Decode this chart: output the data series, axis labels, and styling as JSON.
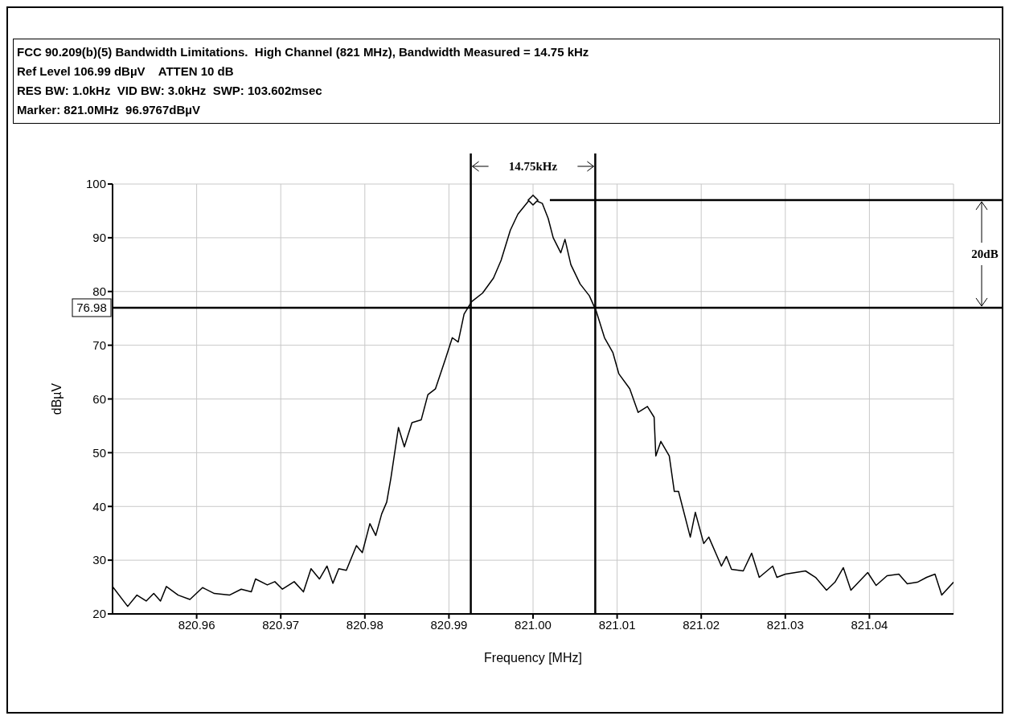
{
  "chart_data": {
    "type": "line",
    "title": "FCC 90.209(b)(5) Bandwidth Limitations.  High Channel (821 MHz), Bandwidth Measured = 14.75 kHz",
    "subtitle": "Ref Level 106.99 dBµV    ATTEN 10 dB\nRES BW: 1.0kHz  VID BW: 3.0kHz  SWP: 103.602msec\nMarker: 821.0MHz  96.9767dBµV",
    "xlabel": "Frequency [MHz]",
    "ylabel": "dBµV",
    "xlim": [
      820.95,
      821.05
    ],
    "xticks": [
      {
        "value": 820.96,
        "label": "820.96"
      },
      {
        "value": 820.97,
        "label": "820.97"
      },
      {
        "value": 820.98,
        "label": "820.98"
      },
      {
        "value": 820.99,
        "label": "820.99"
      },
      {
        "value": 821.0,
        "label": "821.00"
      },
      {
        "value": 821.01,
        "label": "821.01"
      },
      {
        "value": 821.02,
        "label": "821.02"
      },
      {
        "value": 821.03,
        "label": "821.03"
      },
      {
        "value": 821.04,
        "label": "821.04"
      }
    ],
    "ylim": [
      20,
      100
    ],
    "yticks": [
      20,
      30,
      40,
      50,
      60,
      70,
      80,
      90,
      100
    ],
    "grid": true,
    "line_style": "solid",
    "ref_lines": [
      {
        "axis": "y",
        "value": 76.98,
        "label": "76.98",
        "color": "#000000"
      },
      {
        "axis": "y",
        "value": 97.0,
        "color": "#000000"
      },
      {
        "axis": "x",
        "value": 820.9926,
        "color": "#000000"
      },
      {
        "axis": "x",
        "value": 821.0074,
        "color": "#000000"
      }
    ],
    "annotations": [
      "14.75kHz",
      "20dB"
    ],
    "series": [
      {
        "color": "#000000",
        "marker": "none",
        "x": [
          820.95,
          820.9518,
          820.9529,
          820.954,
          820.9549,
          820.9557,
          820.9564,
          820.9578,
          820.9592,
          820.9607,
          820.9621,
          820.9639,
          820.9653,
          820.9665,
          820.967,
          820.9684,
          820.9693,
          820.9702,
          820.9716,
          820.9727,
          820.9736,
          820.9746,
          820.9755,
          820.9762,
          820.9769,
          820.9778,
          820.979,
          820.9797,
          820.9806,
          820.9813,
          820.982,
          820.9826,
          820.9831,
          820.984,
          820.9847,
          820.9856,
          820.9867,
          820.9875,
          820.9884,
          820.9896,
          820.9904,
          820.9911,
          820.9918,
          820.9927,
          820.994,
          820.9953,
          820.9962,
          820.9973,
          820.9982,
          820.9995,
          821.0002,
          821.0011,
          821.0018,
          821.0024,
          821.0033,
          821.0038,
          821.0045,
          821.0056,
          821.0067,
          821.0075,
          821.0085,
          821.0095,
          821.0102,
          821.0115,
          821.0125,
          821.0136,
          821.0144,
          821.0146,
          821.0152,
          821.0162,
          821.0168,
          821.0173,
          821.0187,
          821.0193,
          821.0203,
          821.0209,
          821.0224,
          821.023,
          821.0236,
          821.025,
          821.026,
          821.0269,
          821.0285,
          821.029,
          821.03,
          821.0312,
          821.0324,
          821.0336,
          821.0349,
          821.0359,
          821.0369,
          821.0378,
          821.0398,
          821.0408,
          821.0421,
          821.0435,
          821.0445,
          821.0457,
          821.0468,
          821.0478,
          821.0486,
          821.05
        ],
        "values": [
          25.1,
          21.4,
          23.5,
          22.4,
          23.8,
          22.4,
          25.1,
          23.5,
          22.7,
          24.9,
          23.8,
          23.5,
          24.6,
          24.1,
          26.5,
          25.4,
          26.0,
          24.6,
          26.0,
          24.1,
          28.4,
          26.5,
          28.9,
          25.7,
          28.4,
          28.1,
          32.7,
          31.4,
          36.8,
          34.6,
          38.6,
          40.8,
          45.3,
          54.7,
          51.1,
          55.6,
          56.1,
          60.8,
          61.9,
          67.5,
          71.4,
          70.6,
          75.8,
          78.1,
          79.7,
          82.5,
          85.8,
          91.4,
          94.4,
          96.9,
          97.0,
          96.4,
          93.6,
          90.0,
          87.2,
          89.7,
          85.0,
          81.4,
          79.2,
          76.4,
          71.4,
          68.6,
          64.7,
          61.9,
          57.5,
          58.6,
          56.6,
          49.4,
          52.1,
          49.4,
          42.8,
          42.8,
          34.3,
          38.9,
          33.1,
          34.3,
          28.9,
          30.7,
          28.3,
          28.0,
          31.3,
          26.8,
          28.9,
          26.8,
          27.4,
          27.7,
          28.0,
          26.8,
          24.4,
          25.9,
          28.6,
          24.4,
          27.7,
          25.3,
          27.1,
          27.4,
          25.6,
          25.9,
          26.8,
          27.4,
          23.5,
          25.9
        ]
      },
      {
        "type": "scatter",
        "color": "#000000",
        "marker": "diamond",
        "x": [
          821.0
        ],
        "values": [
          97.0
        ]
      }
    ]
  }
}
